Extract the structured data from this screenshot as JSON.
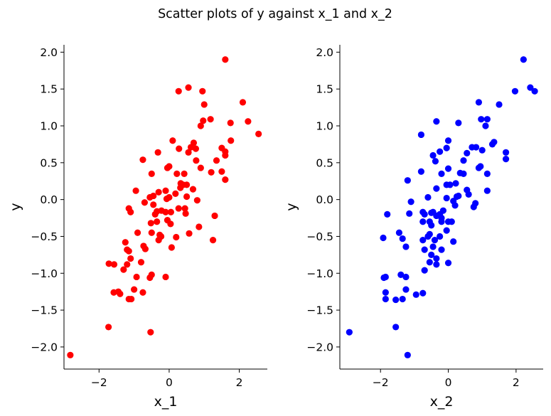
{
  "figure": {
    "suptitle": "Scatter plots of y against x_1 and x_2"
  },
  "chart_data": [
    {
      "type": "scatter",
      "title": "",
      "xlabel": "x_1",
      "ylabel": "y",
      "xlim": [
        -3.0,
        2.8
      ],
      "ylim": [
        -2.3,
        2.1
      ],
      "xticks": [
        -2,
        0,
        2
      ],
      "yticks": [
        -2.0,
        -1.5,
        -1.0,
        -0.5,
        0.0,
        0.5,
        1.0,
        1.5,
        2.0
      ],
      "xtick_labels": [
        "−2",
        "0",
        "2"
      ],
      "ytick_labels": [
        "−2.0",
        "−1.5",
        "−1.0",
        "−0.5",
        "0.0",
        "0.5",
        "1.0",
        "1.5",
        "2.0"
      ],
      "grid": false,
      "spines": [
        "left",
        "bottom"
      ],
      "color": "#ff0000",
      "points": [
        [
          -2.82,
          -2.11
        ],
        [
          1.6,
          1.9
        ],
        [
          0.55,
          1.52
        ],
        [
          0.27,
          1.47
        ],
        [
          0.95,
          1.47
        ],
        [
          2.1,
          1.32
        ],
        [
          1.0,
          1.29
        ],
        [
          1.18,
          1.09
        ],
        [
          0.97,
          1.07
        ],
        [
          2.25,
          1.06
        ],
        [
          1.75,
          1.04
        ],
        [
          0.9,
          1.0
        ],
        [
          2.55,
          0.89
        ],
        [
          1.76,
          0.8
        ],
        [
          0.1,
          0.8
        ],
        [
          0.7,
          0.77
        ],
        [
          0.62,
          0.71
        ],
        [
          0.76,
          0.69
        ],
        [
          0.28,
          0.69
        ],
        [
          1.5,
          0.7
        ],
        [
          1.6,
          0.65
        ],
        [
          -0.32,
          0.64
        ],
        [
          0.55,
          0.64
        ],
        [
          1.6,
          0.6
        ],
        [
          1.35,
          0.53
        ],
        [
          -0.75,
          0.54
        ],
        [
          0.77,
          0.53
        ],
        [
          -0.05,
          0.43
        ],
        [
          0.0,
          0.45
        ],
        [
          0.9,
          0.43
        ],
        [
          1.2,
          0.37
        ],
        [
          1.5,
          0.38
        ],
        [
          -0.5,
          0.35
        ],
        [
          0.22,
          0.35
        ],
        [
          0.43,
          0.35
        ],
        [
          1.6,
          0.27
        ],
        [
          0.33,
          0.22
        ],
        [
          0.4,
          0.2
        ],
        [
          0.5,
          0.2
        ],
        [
          0.32,
          0.16
        ],
        [
          0.68,
          0.14
        ],
        [
          -0.1,
          0.12
        ],
        [
          -0.95,
          0.12
        ],
        [
          -0.3,
          0.1
        ],
        [
          0.18,
          0.08
        ],
        [
          -0.45,
          0.05
        ],
        [
          -0.55,
          0.03
        ],
        [
          -0.07,
          0.01
        ],
        [
          0.0,
          0.03
        ],
        [
          0.5,
          0.04
        ],
        [
          0.8,
          -0.01
        ],
        [
          -0.7,
          -0.04
        ],
        [
          -0.45,
          -0.07
        ],
        [
          0.27,
          -0.12
        ],
        [
          0.45,
          -0.12
        ],
        [
          -1.15,
          -0.12
        ],
        [
          -0.22,
          -0.15
        ],
        [
          -0.35,
          -0.16
        ],
        [
          -1.1,
          -0.17
        ],
        [
          -0.1,
          -0.17
        ],
        [
          0.05,
          -0.17
        ],
        [
          0.47,
          -0.19
        ],
        [
          -0.4,
          -0.2
        ],
        [
          1.3,
          -0.22
        ],
        [
          -0.35,
          -0.3
        ],
        [
          -0.05,
          -0.28
        ],
        [
          -0.52,
          -0.32
        ],
        [
          0.04,
          -0.33
        ],
        [
          0.85,
          -0.37
        ],
        [
          -0.5,
          -0.45
        ],
        [
          0.57,
          -0.46
        ],
        [
          -0.23,
          -0.5
        ],
        [
          -0.27,
          -0.48
        ],
        [
          0.2,
          -0.51
        ],
        [
          -0.9,
          -0.45
        ],
        [
          -0.3,
          -0.55
        ],
        [
          1.25,
          -0.55
        ],
        [
          -0.73,
          -0.63
        ],
        [
          0.07,
          -0.65
        ],
        [
          -1.25,
          -0.58
        ],
        [
          -0.68,
          -0.67
        ],
        [
          -1.15,
          -0.7
        ],
        [
          -1.2,
          -0.68
        ],
        [
          -1.1,
          -0.8
        ],
        [
          -0.8,
          -0.85
        ],
        [
          -1.2,
          -0.88
        ],
        [
          -1.72,
          -0.87
        ],
        [
          -1.57,
          -0.88
        ],
        [
          -1.3,
          -0.95
        ],
        [
          -0.5,
          -1.02
        ],
        [
          -0.55,
          -1.06
        ],
        [
          -0.1,
          -1.05
        ],
        [
          -0.93,
          -1.05
        ],
        [
          -1.58,
          -1.26
        ],
        [
          -1.4,
          -1.28
        ],
        [
          -1.0,
          -1.22
        ],
        [
          -1.45,
          -1.25
        ],
        [
          -0.75,
          -1.26
        ],
        [
          -1.15,
          -1.35
        ],
        [
          -1.08,
          -1.35
        ],
        [
          -1.73,
          -1.73
        ],
        [
          -0.53,
          -1.8
        ]
      ]
    },
    {
      "type": "scatter",
      "title": "",
      "xlabel": "x_2",
      "ylabel": "y",
      "xlim": [
        -3.2,
        2.8
      ],
      "ylim": [
        -2.3,
        2.1
      ],
      "xticks": [
        -2,
        0,
        2
      ],
      "yticks": [
        -2.0,
        -1.5,
        -1.0,
        -0.5,
        0.0,
        0.5,
        1.0,
        1.5,
        2.0
      ],
      "xtick_labels": [
        "−2",
        "0",
        "2"
      ],
      "ytick_labels": [
        "−2.0",
        "−1.5",
        "−1.0",
        "−0.5",
        "0.0",
        "0.5",
        "1.0",
        "1.5",
        "2.0"
      ],
      "grid": false,
      "spines": [
        "left",
        "bottom"
      ],
      "color": "#0000ff",
      "points": [
        [
          2.22,
          1.9
        ],
        [
          2.42,
          1.52
        ],
        [
          2.55,
          1.47
        ],
        [
          1.97,
          1.47
        ],
        [
          0.9,
          1.32
        ],
        [
          1.5,
          1.29
        ],
        [
          0.97,
          1.09
        ],
        [
          1.15,
          1.09
        ],
        [
          -0.35,
          1.06
        ],
        [
          0.3,
          1.04
        ],
        [
          1.1,
          1.0
        ],
        [
          -0.8,
          0.88
        ],
        [
          0.0,
          0.8
        ],
        [
          1.35,
          0.78
        ],
        [
          1.3,
          0.75
        ],
        [
          0.7,
          0.71
        ],
        [
          -0.05,
          0.7
        ],
        [
          1.0,
          0.67
        ],
        [
          0.82,
          0.71
        ],
        [
          -0.25,
          0.65
        ],
        [
          1.7,
          0.64
        ],
        [
          -0.45,
          0.6
        ],
        [
          0.55,
          0.63
        ],
        [
          -0.38,
          0.52
        ],
        [
          0.45,
          0.53
        ],
        [
          1.7,
          0.55
        ],
        [
          0.95,
          0.45
        ],
        [
          0.9,
          0.43
        ],
        [
          0.0,
          0.42
        ],
        [
          -0.8,
          0.38
        ],
        [
          0.35,
          0.36
        ],
        [
          -0.2,
          0.35
        ],
        [
          0.45,
          0.35
        ],
        [
          1.15,
          0.35
        ],
        [
          -1.2,
          0.26
        ],
        [
          -0.05,
          0.2
        ],
        [
          0.05,
          0.2
        ],
        [
          0.22,
          0.22
        ],
        [
          -0.35,
          0.15
        ],
        [
          0.55,
          0.13
        ],
        [
          1.15,
          0.12
        ],
        [
          -0.05,
          0.02
        ],
        [
          0.6,
          0.07
        ],
        [
          0.25,
          0.04
        ],
        [
          0.3,
          0.05
        ],
        [
          -0.6,
          0.03
        ],
        [
          0.15,
          -0.02
        ],
        [
          -1.1,
          -0.03
        ],
        [
          0.8,
          -0.05
        ],
        [
          0.2,
          -0.08
        ],
        [
          0.75,
          -0.1
        ],
        [
          -0.45,
          -0.17
        ],
        [
          -0.15,
          -0.15
        ],
        [
          -0.75,
          -0.17
        ],
        [
          -0.25,
          -0.2
        ],
        [
          -0.5,
          -0.18
        ],
        [
          -0.35,
          -0.22
        ],
        [
          -0.7,
          -0.2
        ],
        [
          -0.2,
          -0.25
        ],
        [
          -1.8,
          -0.2
        ],
        [
          -1.15,
          -0.19
        ],
        [
          0.1,
          -0.3
        ],
        [
          -0.2,
          -0.3
        ],
        [
          0.0,
          -0.3
        ],
        [
          -0.55,
          -0.3
        ],
        [
          -0.5,
          -0.35
        ],
        [
          -0.75,
          -0.3
        ],
        [
          -0.05,
          -0.42
        ],
        [
          -0.55,
          -0.47
        ],
        [
          -1.45,
          -0.45
        ],
        [
          -0.6,
          -0.5
        ],
        [
          -0.25,
          -0.5
        ],
        [
          -1.92,
          -0.52
        ],
        [
          -1.35,
          -0.53
        ],
        [
          -0.75,
          -0.55
        ],
        [
          -0.4,
          -0.55
        ],
        [
          0.15,
          -0.57
        ],
        [
          -0.45,
          -0.64
        ],
        [
          -1.25,
          -0.64
        ],
        [
          -0.7,
          -0.68
        ],
        [
          -0.2,
          -0.68
        ],
        [
          -0.5,
          -0.75
        ],
        [
          -0.35,
          -0.8
        ],
        [
          -0.55,
          -0.85
        ],
        [
          -0.35,
          -0.88
        ],
        [
          0.0,
          -0.86
        ],
        [
          -0.7,
          -0.96
        ],
        [
          -1.4,
          -1.02
        ],
        [
          -1.85,
          -1.05
        ],
        [
          -1.9,
          -1.06
        ],
        [
          -1.25,
          -1.05
        ],
        [
          -1.25,
          -1.22
        ],
        [
          -1.85,
          -1.26
        ],
        [
          -0.75,
          -1.27
        ],
        [
          -0.95,
          -1.29
        ],
        [
          -1.55,
          -1.36
        ],
        [
          -1.85,
          -1.35
        ],
        [
          -1.35,
          -1.35
        ],
        [
          -1.55,
          -1.73
        ],
        [
          -2.92,
          -1.8
        ],
        [
          -1.2,
          -2.11
        ]
      ]
    }
  ]
}
